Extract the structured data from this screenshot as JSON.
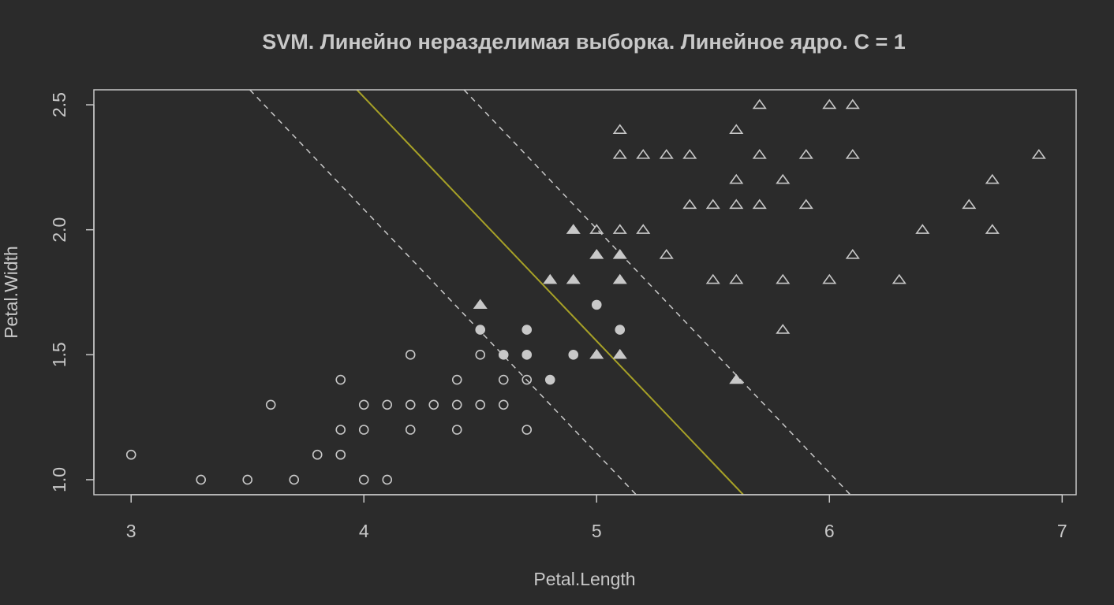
{
  "colors": {
    "background": "#2b2b2b",
    "foreground": "#c8c8c8",
    "decision_line": "#a7a127",
    "margin_line": "#c8c8c8"
  },
  "chart_data": {
    "type": "scatter",
    "title": "SVM. Линейно неразделимая выборка. Линейное ядро. C = 1",
    "xlabel": "Petal.Length",
    "ylabel": "Petal.Width",
    "xlim": [
      2.84,
      7.06
    ],
    "ylim": [
      0.94,
      2.56
    ],
    "x_ticks": [
      3,
      4,
      5,
      6,
      7
    ],
    "x_tick_labels": [
      "3",
      "4",
      "5",
      "6",
      "7"
    ],
    "y_ticks": [
      1.0,
      1.5,
      2.0,
      2.5
    ],
    "y_tick_labels": [
      "1.0",
      "1.5",
      "2.0",
      "2.5"
    ],
    "grid": false,
    "series": [
      {
        "marker": "circle",
        "points": [
          [
            3.0,
            1.1
          ],
          [
            3.3,
            1.0
          ],
          [
            3.5,
            1.0
          ],
          [
            3.6,
            1.3
          ],
          [
            3.7,
            1.0
          ],
          [
            3.8,
            1.1
          ],
          [
            3.9,
            1.4
          ],
          [
            3.9,
            1.2
          ],
          [
            3.9,
            1.1
          ],
          [
            4.0,
            1.3
          ],
          [
            4.0,
            1.2
          ],
          [
            4.0,
            1.0
          ],
          [
            4.1,
            1.3
          ],
          [
            4.1,
            1.0
          ],
          [
            4.2,
            1.5
          ],
          [
            4.2,
            1.3
          ],
          [
            4.2,
            1.2
          ],
          [
            4.3,
            1.3
          ],
          [
            4.4,
            1.4
          ],
          [
            4.4,
            1.3
          ],
          [
            4.4,
            1.2
          ],
          [
            4.5,
            1.5
          ],
          [
            4.5,
            1.3
          ],
          [
            4.6,
            1.4
          ],
          [
            4.6,
            1.3
          ],
          [
            4.7,
            1.4
          ],
          [
            4.7,
            1.2
          ]
        ]
      },
      {
        "marker": "circle-filled",
        "points": [
          [
            4.5,
            1.6
          ],
          [
            4.6,
            1.5
          ],
          [
            4.7,
            1.6
          ],
          [
            4.7,
            1.5
          ],
          [
            4.8,
            1.4
          ],
          [
            4.9,
            1.5
          ],
          [
            5.0,
            1.7
          ],
          [
            5.1,
            1.6
          ]
        ]
      },
      {
        "marker": "triangle-filled",
        "points": [
          [
            4.5,
            1.7
          ],
          [
            4.8,
            1.8
          ],
          [
            4.9,
            1.8
          ],
          [
            4.9,
            2.0
          ],
          [
            5.0,
            1.9
          ],
          [
            5.0,
            1.5
          ],
          [
            5.1,
            1.8
          ],
          [
            5.1,
            1.5
          ],
          [
            5.1,
            1.9
          ],
          [
            5.6,
            1.4
          ]
        ]
      },
      {
        "marker": "triangle",
        "points": [
          [
            5.0,
            2.0
          ],
          [
            5.1,
            2.4
          ],
          [
            5.1,
            2.3
          ],
          [
            5.1,
            2.0
          ],
          [
            5.2,
            2.3
          ],
          [
            5.2,
            2.0
          ],
          [
            5.3,
            2.3
          ],
          [
            5.3,
            1.9
          ],
          [
            5.4,
            2.3
          ],
          [
            5.4,
            2.1
          ],
          [
            5.5,
            2.1
          ],
          [
            5.5,
            1.8
          ],
          [
            5.6,
            2.4
          ],
          [
            5.6,
            2.2
          ],
          [
            5.6,
            2.1
          ],
          [
            5.6,
            1.8
          ],
          [
            5.7,
            2.5
          ],
          [
            5.7,
            2.3
          ],
          [
            5.7,
            2.1
          ],
          [
            5.8,
            2.2
          ],
          [
            5.8,
            1.8
          ],
          [
            5.8,
            1.6
          ],
          [
            5.9,
            2.3
          ],
          [
            5.9,
            2.1
          ],
          [
            6.0,
            2.5
          ],
          [
            6.0,
            1.8
          ],
          [
            6.1,
            2.5
          ],
          [
            6.1,
            2.3
          ],
          [
            6.1,
            1.9
          ],
          [
            6.3,
            1.8
          ],
          [
            6.4,
            2.0
          ],
          [
            6.6,
            2.1
          ],
          [
            6.7,
            2.2
          ],
          [
            6.7,
            2.0
          ],
          [
            6.9,
            2.3
          ]
        ]
      }
    ],
    "lines": [
      {
        "role": "decision-boundary",
        "style": "solid",
        "points": [
          [
            3.97,
            2.56
          ],
          [
            5.63,
            0.94
          ]
        ]
      },
      {
        "role": "margin-lower",
        "style": "dashed",
        "points": [
          [
            3.51,
            2.56
          ],
          [
            5.17,
            0.94
          ]
        ]
      },
      {
        "role": "margin-upper",
        "style": "dashed",
        "points": [
          [
            4.43,
            2.56
          ],
          [
            6.09,
            0.94
          ]
        ]
      }
    ]
  }
}
